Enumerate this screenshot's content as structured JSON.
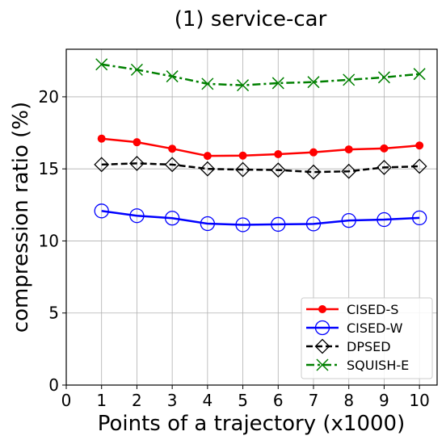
{
  "chart_data": {
    "type": "line",
    "title": "(1) service-car",
    "xlabel": "Points of a trajectory (x1000)",
    "ylabel": "compression ratio (%)",
    "xlim": [
      0,
      10.5
    ],
    "ylim": [
      0,
      23.3
    ],
    "xticks": [
      0,
      1,
      2,
      3,
      4,
      5,
      6,
      7,
      8,
      9,
      10
    ],
    "yticks": [
      0,
      5,
      10,
      15,
      20
    ],
    "grid": true,
    "legend_position": "lower-right",
    "x": [
      1,
      2,
      3,
      4,
      5,
      6,
      7,
      8,
      9,
      10
    ],
    "series": [
      {
        "name": "CISED-S",
        "color": "#ff0000",
        "marker": "filled-circle",
        "linestyle": "solid",
        "values": [
          17.1,
          16.85,
          16.4,
          15.9,
          15.92,
          16.02,
          16.15,
          16.35,
          16.42,
          16.62
        ]
      },
      {
        "name": "CISED-W",
        "color": "#0000ff",
        "marker": "open-circle",
        "linestyle": "solid",
        "values": [
          12.08,
          11.75,
          11.58,
          11.2,
          11.12,
          11.15,
          11.18,
          11.42,
          11.48,
          11.6
        ]
      },
      {
        "name": "DPSED",
        "color": "#000000",
        "marker": "open-diamond",
        "linestyle": "dashed",
        "values": [
          15.3,
          15.38,
          15.3,
          15.0,
          14.95,
          14.92,
          14.78,
          14.83,
          15.1,
          15.18
        ]
      },
      {
        "name": "SQUISH-E",
        "color": "#008000",
        "marker": "x",
        "linestyle": "dashdot",
        "values": [
          22.25,
          21.88,
          21.42,
          20.9,
          20.8,
          20.95,
          21.02,
          21.18,
          21.35,
          21.58
        ]
      }
    ]
  }
}
